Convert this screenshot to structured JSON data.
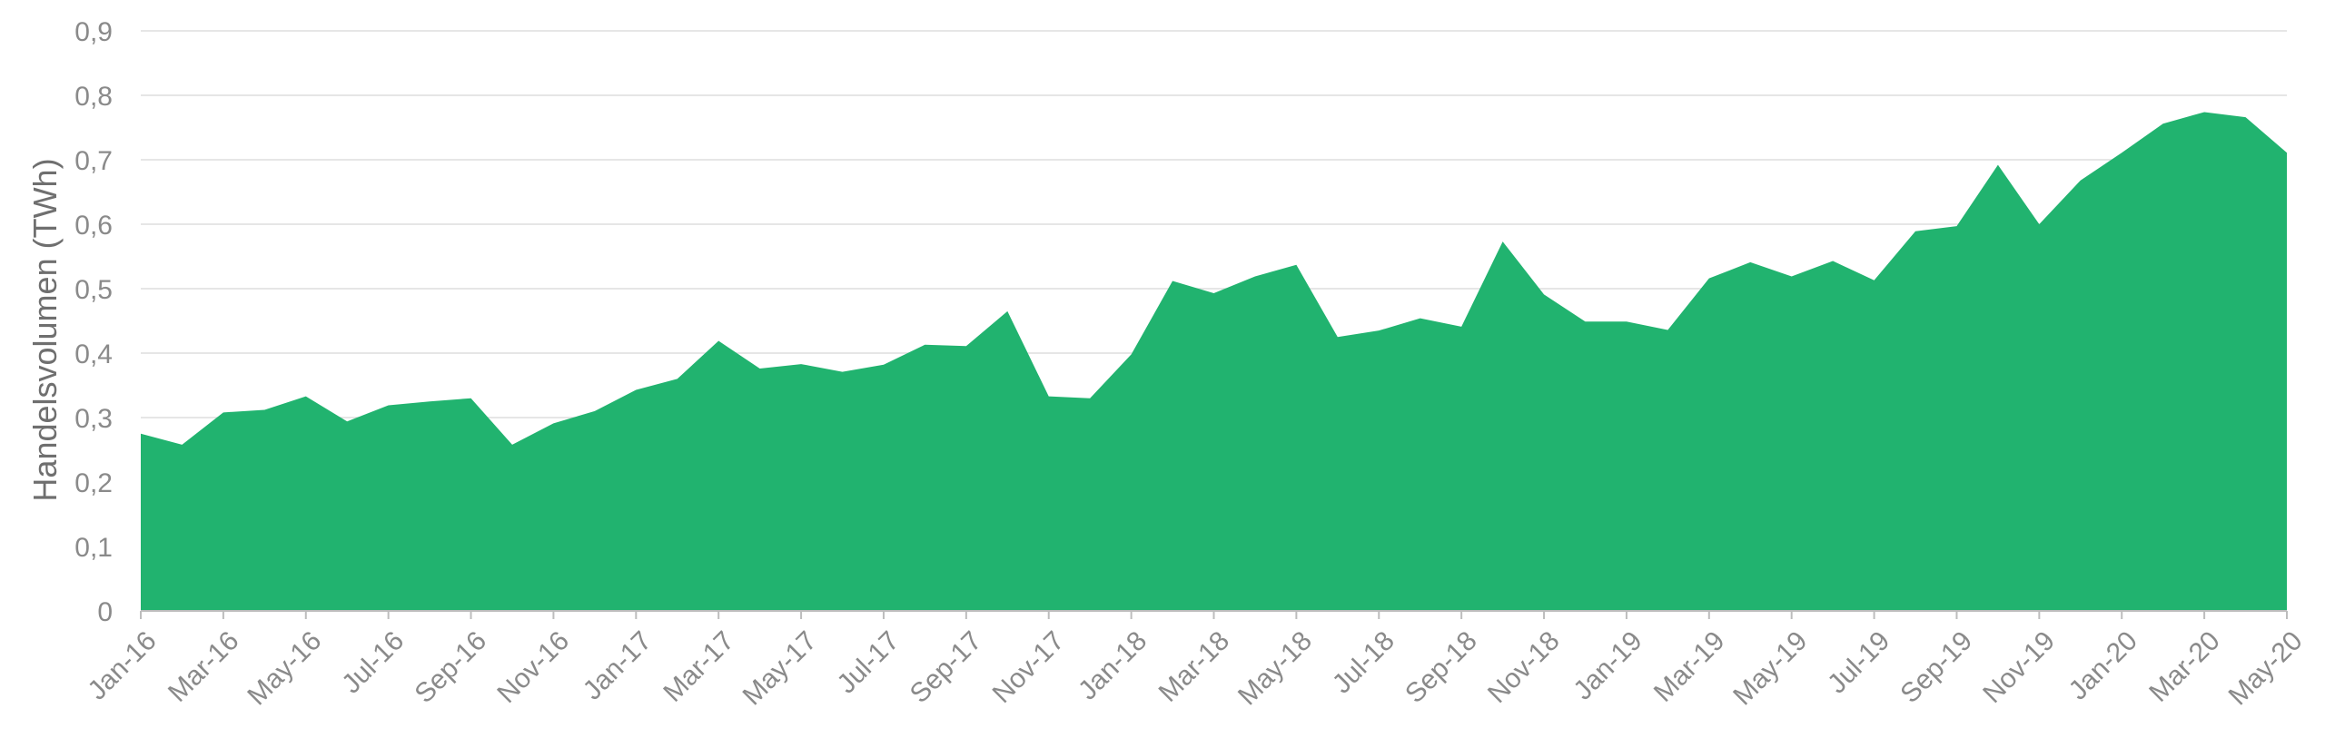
{
  "colors": {
    "area": "#21b36f",
    "grid": "#dedede",
    "text": "#8a8a8a"
  },
  "chart_data": {
    "type": "area",
    "title": "",
    "xlabel": "",
    "ylabel": "Handelsvolumen (TWh)",
    "ylim": [
      0,
      0.9
    ],
    "grid": true,
    "y_ticks": [
      "0",
      "0,1",
      "0,2",
      "0,3",
      "0,4",
      "0,5",
      "0,6",
      "0,7",
      "0,8",
      "0,9"
    ],
    "x_tick_labels": [
      "Jan-16",
      "Mar-16",
      "May-16",
      "Jul-16",
      "Sep-16",
      "Nov-16",
      "Jan-17",
      "Mar-17",
      "May-17",
      "Jul-17",
      "Sep-17",
      "Nov-17",
      "Jan-18",
      "Mar-18",
      "May-18",
      "Jul-18",
      "Sep-18",
      "Nov-18",
      "Jan-19",
      "Mar-19",
      "May-19",
      "Jul-19",
      "Sep-19",
      "Nov-19",
      "Jan-20",
      "Mar-20",
      "May-20"
    ],
    "x": [
      "Jan-16",
      "Feb-16",
      "Mar-16",
      "Apr-16",
      "May-16",
      "Jun-16",
      "Jul-16",
      "Aug-16",
      "Sep-16",
      "Oct-16",
      "Nov-16",
      "Dec-16",
      "Jan-17",
      "Feb-17",
      "Mar-17",
      "Apr-17",
      "May-17",
      "Jun-17",
      "Jul-17",
      "Aug-17",
      "Sep-17",
      "Oct-17",
      "Nov-17",
      "Dec-17",
      "Jan-18",
      "Feb-18",
      "Mar-18",
      "Apr-18",
      "May-18",
      "Jun-18",
      "Jul-18",
      "Aug-18",
      "Sep-18",
      "Oct-18",
      "Nov-18",
      "Dec-18",
      "Jan-19",
      "Feb-19",
      "Mar-19",
      "Apr-19",
      "May-19",
      "Jun-19",
      "Jul-19",
      "Aug-19",
      "Sep-19",
      "Oct-19",
      "Nov-19",
      "Dec-19",
      "Jan-20",
      "Feb-20",
      "Mar-20",
      "Apr-20",
      "May-20"
    ],
    "series": [
      {
        "values": [
          0.275,
          0.258,
          0.308,
          0.312,
          0.333,
          0.294,
          0.319,
          0.325,
          0.33,
          0.258,
          0.291,
          0.31,
          0.343,
          0.36,
          0.419,
          0.376,
          0.383,
          0.371,
          0.382,
          0.413,
          0.411,
          0.465,
          0.333,
          0.33,
          0.398,
          0.512,
          0.493,
          0.519,
          0.537,
          0.425,
          0.435,
          0.454,
          0.441,
          0.573,
          0.491,
          0.449,
          0.449,
          0.436,
          0.516,
          0.541,
          0.519,
          0.543,
          0.513,
          0.589,
          0.597,
          0.692,
          0.6,
          0.668,
          0.711,
          0.756,
          0.774,
          0.766,
          0.711
        ]
      }
    ]
  }
}
